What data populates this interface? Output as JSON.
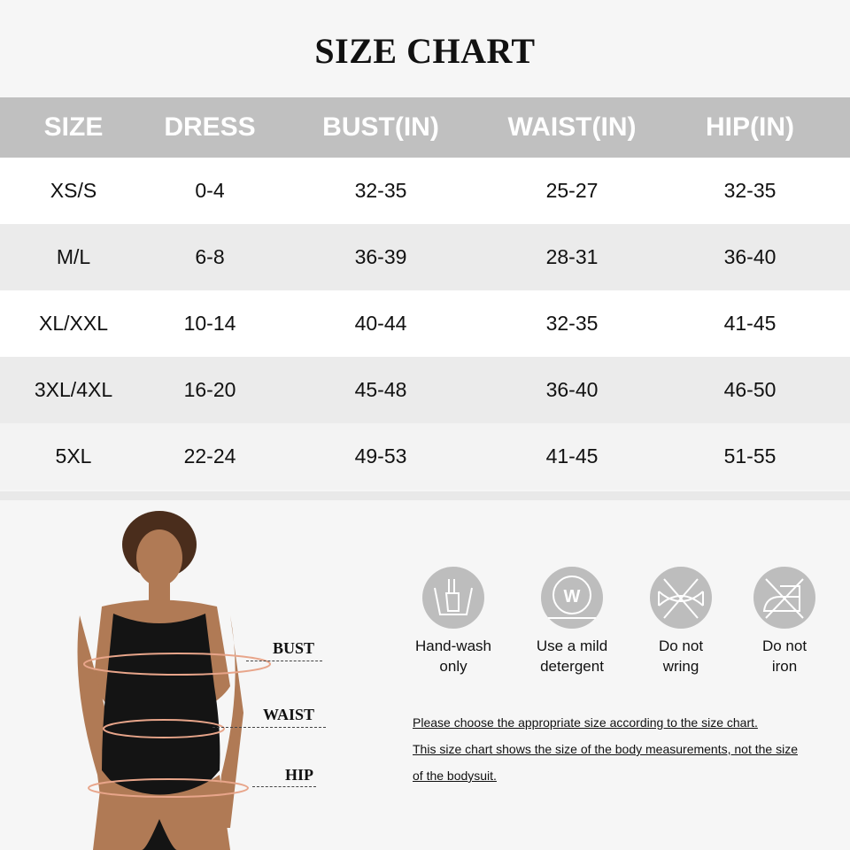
{
  "title": "SIZE CHART",
  "table": {
    "headers": [
      "SIZE",
      "DRESS",
      "BUST(IN)",
      "WAIST(IN)",
      "HIP(IN)"
    ],
    "rows": [
      [
        "XS/S",
        "0-4",
        "32-35",
        "25-27",
        "32-35"
      ],
      [
        "M/L",
        "6-8",
        "36-39",
        "28-31",
        "36-40"
      ],
      [
        "XL/XXL",
        "10-14",
        "40-44",
        "32-35",
        "41-45"
      ],
      [
        "3XL/4XL",
        "16-20",
        "45-48",
        "36-40",
        "46-50"
      ],
      [
        "5XL",
        "22-24",
        "49-53",
        "41-45",
        "51-55"
      ]
    ]
  },
  "measure_labels": {
    "bust": "BUST",
    "waist": "WAIST",
    "hip": "HIP"
  },
  "care": [
    {
      "icon": "hand-wash-icon",
      "line1": "Hand-wash",
      "line2": "only"
    },
    {
      "icon": "mild-detergent-icon",
      "line1": "Use a mild",
      "line2": "detergent",
      "glyph": "W"
    },
    {
      "icon": "do-not-wring-icon",
      "line1": "Do not",
      "line2": "wring"
    },
    {
      "icon": "do-not-iron-icon",
      "line1": "Do not",
      "line2": "iron"
    }
  ],
  "notes": [
    "Please choose the appropriate size according to the size chart.",
    "This size chart shows the size of the body measurements, not the size",
    "of the bodysuit."
  ],
  "colors": {
    "header_band": "#c0c0c0",
    "row_alt": "#ebebeb",
    "icon_bg": "#bdbdbd",
    "measure_line": "#e8a58a"
  }
}
